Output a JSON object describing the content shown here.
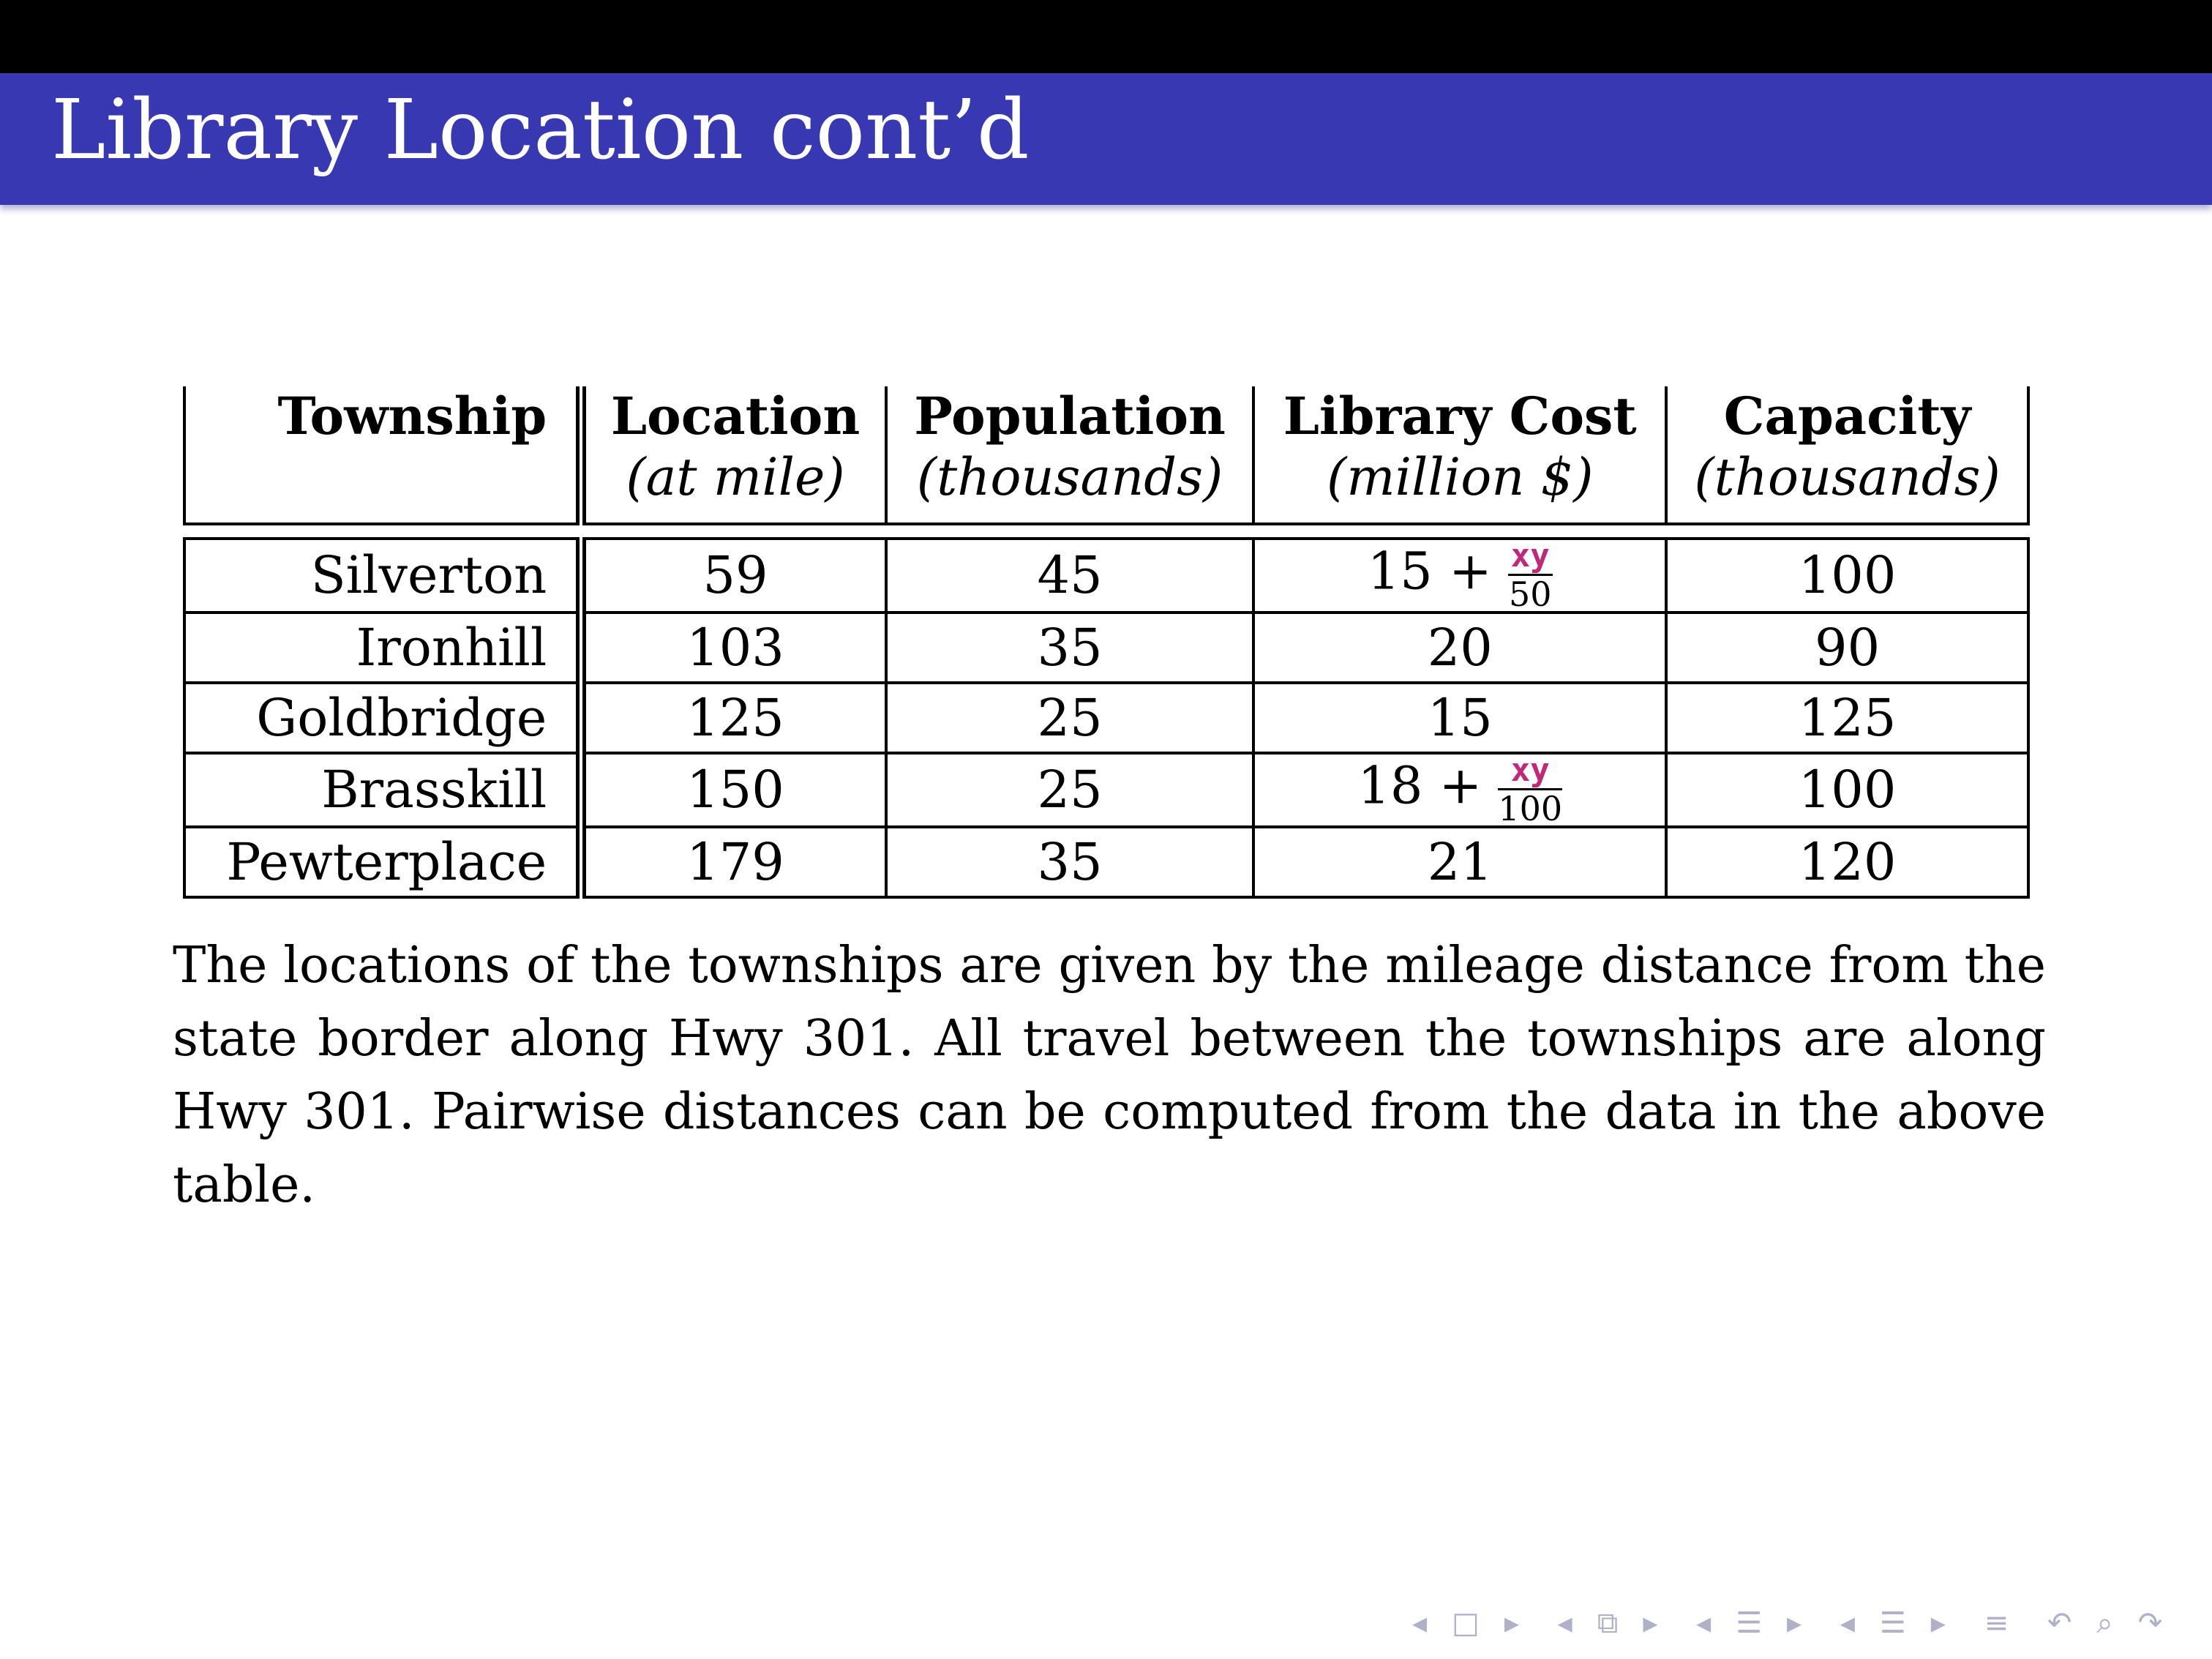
{
  "slide": {
    "title": "Library Location cont’d"
  },
  "table": {
    "headers": [
      {
        "main": "Township",
        "sub": ""
      },
      {
        "main": "Location",
        "sub": "(at mile)"
      },
      {
        "main": "Population",
        "sub": "(thousands)"
      },
      {
        "main": "Library Cost",
        "sub": "(million $)"
      },
      {
        "main": "Capacity",
        "sub": "(thousands)"
      }
    ],
    "rows": [
      {
        "township": "Silverton",
        "location": "59",
        "population": "45",
        "cost": "15 +",
        "cost_frac_num": "xy",
        "cost_frac_den": "50",
        "capacity": "100"
      },
      {
        "township": "Ironhill",
        "location": "103",
        "population": "35",
        "cost": "20",
        "capacity": "90"
      },
      {
        "township": "Goldbridge",
        "location": "125",
        "population": "25",
        "cost": "15",
        "capacity": "125"
      },
      {
        "township": "Brasskill",
        "location": "150",
        "population": "25",
        "cost": "18 +",
        "cost_frac_num": "xy",
        "cost_frac_den": "100",
        "capacity": "100"
      },
      {
        "township": "Pewterplace",
        "location": "179",
        "population": "35",
        "cost": "21",
        "capacity": "120"
      }
    ]
  },
  "paragraph": "The locations of the townships are given by the mileage distance from the state border along Hwy 301. All travel between the townships are along Hwy 301. Pairwise distances can be computed from the data in the above table.",
  "nav_icons": [
    "nav-prev-frame-icon",
    "nav-frame-icon",
    "nav-next-frame-icon",
    "nav-prev-slide-icon",
    "nav-slide-icon",
    "nav-next-slide-icon",
    "nav-prev-section-icon",
    "nav-section-icon",
    "nav-next-section-icon",
    "nav-prev-subsection-icon",
    "nav-subsection-icon",
    "nav-next-subsection-icon",
    "nav-toc-icon",
    "nav-back-icon",
    "nav-search-icon",
    "nav-forward-icon"
  ],
  "colors": {
    "titlebar": "#3838b3",
    "topbar": "#000000",
    "fraction_accent": "#c0287a"
  }
}
